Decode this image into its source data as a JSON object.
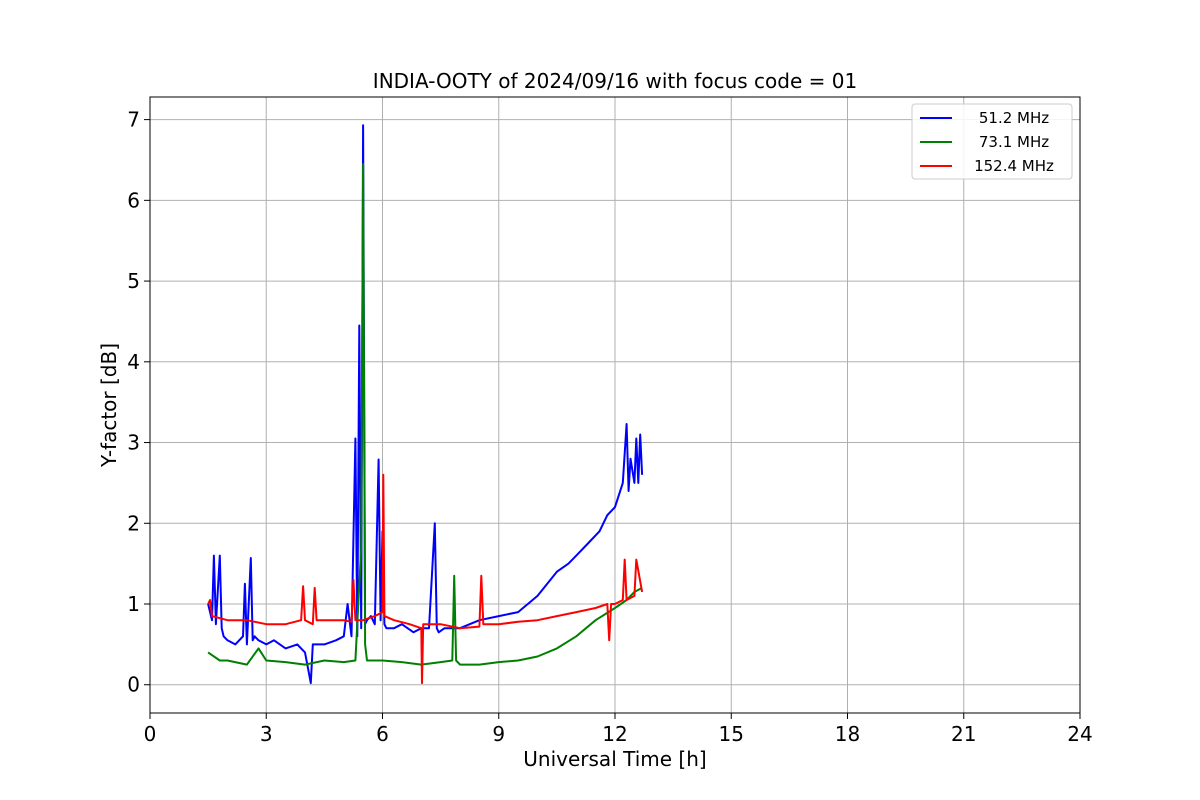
{
  "chart_data": {
    "type": "line",
    "title": "INDIA-OOTY of 2024/09/16 with focus code = 01",
    "xlabel": "Universal Time [h]",
    "ylabel": "Y-factor [dB]",
    "xlim": [
      0,
      24
    ],
    "ylim": [
      -0.35,
      7.28
    ],
    "xticks": [
      0,
      3,
      6,
      9,
      12,
      15,
      18,
      21,
      24
    ],
    "yticks": [
      0,
      1,
      2,
      3,
      4,
      5,
      6,
      7
    ],
    "grid": true,
    "legend_position": "top-right",
    "series": [
      {
        "name": "51.2 MHz",
        "color": "#0000ff",
        "x": [
          1.5,
          1.6,
          1.65,
          1.7,
          1.8,
          1.85,
          1.9,
          2.0,
          2.2,
          2.4,
          2.45,
          2.5,
          2.6,
          2.65,
          2.7,
          2.8,
          3.0,
          3.2,
          3.5,
          3.8,
          4.0,
          4.15,
          4.2,
          4.5,
          4.8,
          5.0,
          5.1,
          5.2,
          5.3,
          5.35,
          5.4,
          5.45,
          5.5,
          5.55,
          5.6,
          5.7,
          5.8,
          5.9,
          5.95,
          6.0,
          6.05,
          6.1,
          6.3,
          6.5,
          6.8,
          7.0,
          7.2,
          7.35,
          7.4,
          7.45,
          7.6,
          8.0,
          8.5,
          9.0,
          9.5,
          10.0,
          10.5,
          10.8,
          11.0,
          11.3,
          11.6,
          11.8,
          12.0,
          12.2,
          12.3,
          12.35,
          12.4,
          12.5,
          12.55,
          12.6,
          12.65,
          12.7
        ],
        "y": [
          1.0,
          0.8,
          1.6,
          0.75,
          1.6,
          0.7,
          0.6,
          0.55,
          0.5,
          0.6,
          1.25,
          0.5,
          1.57,
          0.55,
          0.6,
          0.55,
          0.5,
          0.55,
          0.45,
          0.5,
          0.4,
          0.02,
          0.5,
          0.5,
          0.55,
          0.6,
          1.0,
          0.6,
          3.05,
          0.6,
          4.45,
          0.7,
          6.93,
          0.75,
          0.8,
          0.85,
          0.75,
          2.79,
          0.8,
          1.9,
          0.75,
          0.7,
          0.7,
          0.75,
          0.65,
          0.7,
          0.7,
          2.0,
          0.7,
          0.65,
          0.7,
          0.7,
          0.8,
          0.85,
          0.9,
          1.1,
          1.4,
          1.5,
          1.6,
          1.75,
          1.9,
          2.1,
          2.2,
          2.5,
          3.23,
          2.4,
          2.8,
          2.5,
          3.05,
          2.5,
          3.1,
          2.6
        ]
      },
      {
        "name": "73.1 MHz",
        "color": "#008000",
        "x": [
          1.5,
          1.8,
          2.0,
          2.5,
          2.8,
          3.0,
          3.5,
          4.0,
          4.5,
          5.0,
          5.3,
          5.45,
          5.5,
          5.55,
          5.6,
          5.7,
          6.0,
          6.5,
          7.0,
          7.5,
          7.8,
          7.85,
          7.9,
          8.0,
          8.5,
          9.0,
          9.5,
          10.0,
          10.5,
          11.0,
          11.5,
          12.0,
          12.3,
          12.5,
          12.7
        ],
        "y": [
          0.4,
          0.3,
          0.3,
          0.25,
          0.45,
          0.3,
          0.28,
          0.25,
          0.3,
          0.28,
          0.3,
          1.7,
          6.45,
          0.5,
          0.3,
          0.3,
          0.3,
          0.28,
          0.25,
          0.28,
          0.3,
          1.35,
          0.3,
          0.25,
          0.25,
          0.28,
          0.3,
          0.35,
          0.45,
          0.6,
          0.8,
          0.95,
          1.05,
          1.15,
          1.2
        ]
      },
      {
        "name": "152.4 MHz",
        "color": "#ff0000",
        "x": [
          1.5,
          1.55,
          1.6,
          2.0,
          2.5,
          3.0,
          3.5,
          3.9,
          3.95,
          4.0,
          4.2,
          4.25,
          4.3,
          4.8,
          5.0,
          5.2,
          5.25,
          5.3,
          5.5,
          5.8,
          6.0,
          6.02,
          6.05,
          6.3,
          6.7,
          7.0,
          7.02,
          7.05,
          7.5,
          8.0,
          8.5,
          8.55,
          8.6,
          9.0,
          9.5,
          10.0,
          10.5,
          11.0,
          11.5,
          11.8,
          11.85,
          11.9,
          12.0,
          12.2,
          12.25,
          12.3,
          12.5,
          12.55,
          12.7
        ],
        "y": [
          1.0,
          1.05,
          0.85,
          0.8,
          0.8,
          0.75,
          0.75,
          0.8,
          1.22,
          0.8,
          0.75,
          1.2,
          0.8,
          0.8,
          0.8,
          0.78,
          1.3,
          0.8,
          0.8,
          0.85,
          0.9,
          2.6,
          0.85,
          0.8,
          0.75,
          0.7,
          0.02,
          0.75,
          0.75,
          0.7,
          0.72,
          1.35,
          0.75,
          0.75,
          0.78,
          0.8,
          0.85,
          0.9,
          0.95,
          1.0,
          0.55,
          1.0,
          1.0,
          1.05,
          1.55,
          1.05,
          1.1,
          1.55,
          1.15
        ]
      }
    ]
  }
}
